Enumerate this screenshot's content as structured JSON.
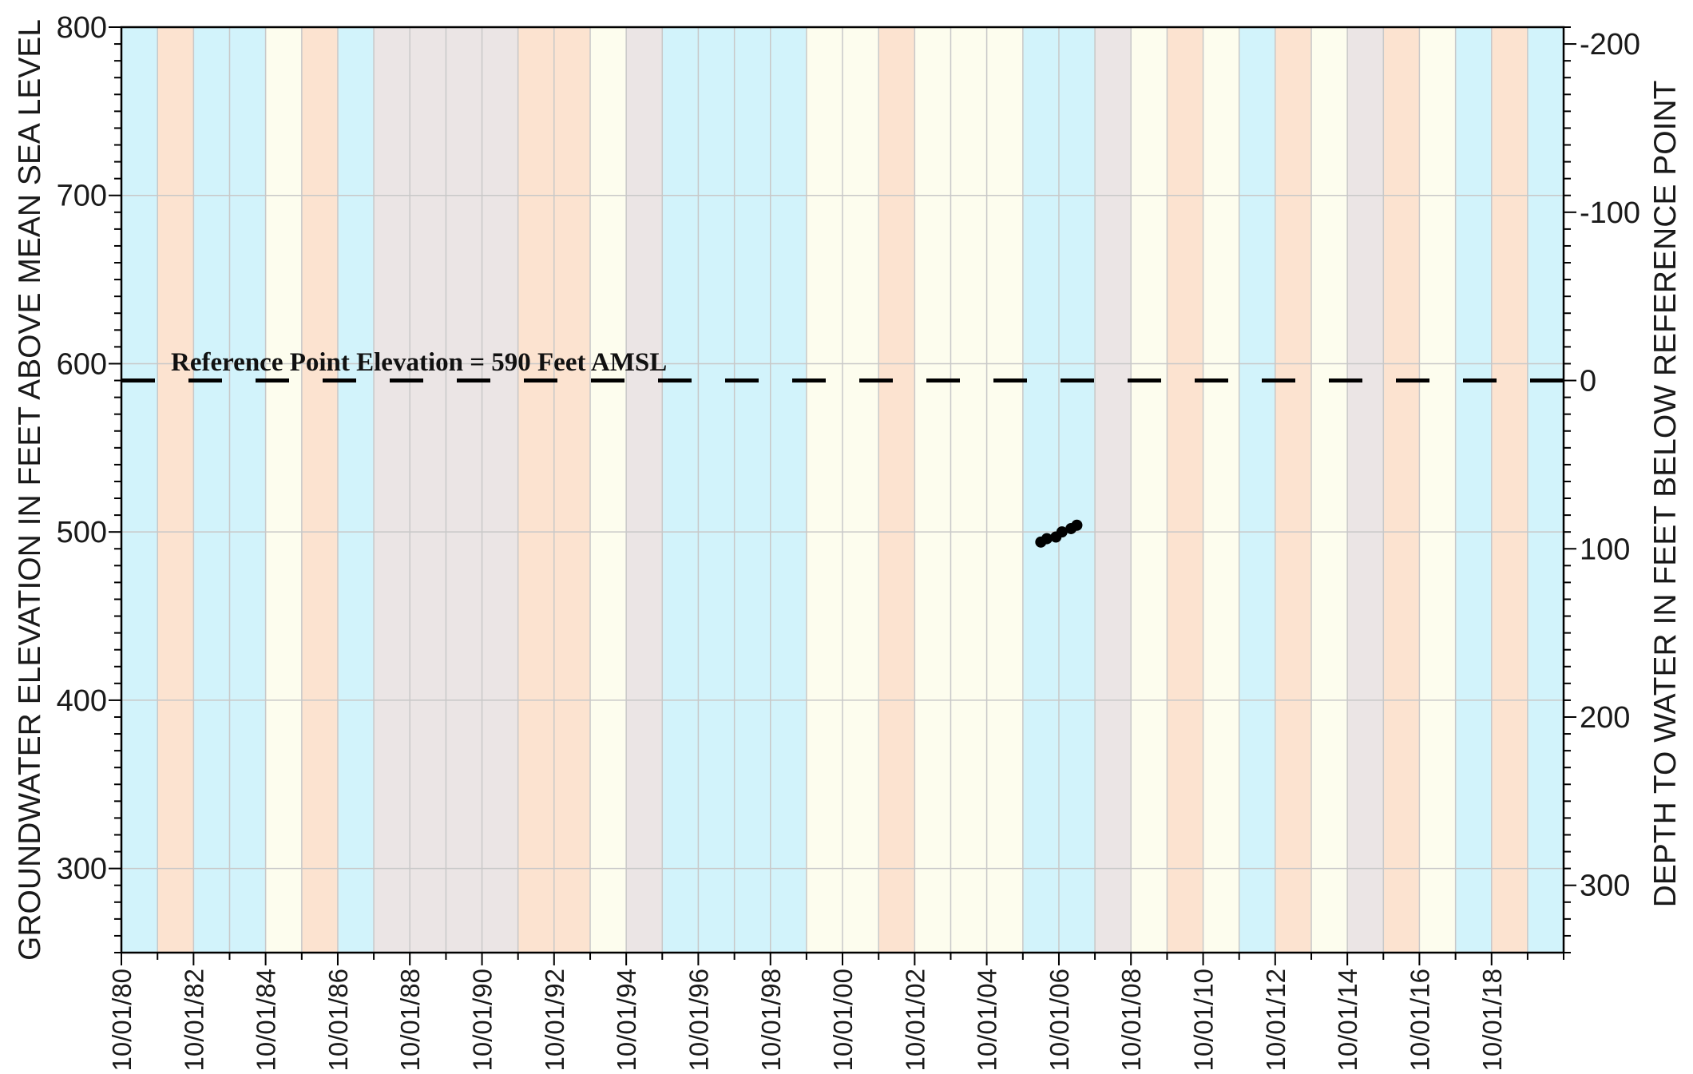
{
  "chart_data": {
    "type": "line",
    "y_left_label": "GROUNDWATER ELEVATION IN FEET ABOVE MEAN SEA LEVEL",
    "y_right_label": "DEPTH TO WATER IN FEET BELOW REFERENCE POINT",
    "ylim": [
      250,
      800
    ],
    "y_ticks": [
      300,
      400,
      500,
      600,
      700,
      800
    ],
    "y_right_ticks": [
      -200,
      -100,
      0,
      100,
      200,
      300
    ],
    "y_right_tick_labels": [
      "-200",
      "-100",
      "0",
      "100",
      "200",
      "300"
    ],
    "xlim": [
      "1979-10-01",
      "2019-10-01"
    ],
    "x_ticks": [
      "10/01/80",
      "10/01/82",
      "10/01/84",
      "10/01/86",
      "10/01/88",
      "10/01/90",
      "10/01/92",
      "10/01/94",
      "10/01/96",
      "10/01/98",
      "10/01/00",
      "10/01/02",
      "10/01/04",
      "10/01/06",
      "10/01/08",
      "10/01/10",
      "10/01/12",
      "10/01/14",
      "10/01/16",
      "10/01/18"
    ],
    "reference_point": {
      "elevation": 590,
      "label": "Reference Point Elevation = 590 Feet AMSL"
    },
    "background_years": {
      "start_year": 1979,
      "classes": [
        "blue",
        "orange",
        "blue",
        "blue",
        "yellow",
        "orange",
        "blue",
        "gray",
        "gray",
        "gray",
        "gray",
        "orange",
        "orange",
        "yellow",
        "gray",
        "blue",
        "blue",
        "blue",
        "blue",
        "yellow",
        "yellow",
        "orange",
        "yellow",
        "yellow",
        "yellow",
        "blue",
        "blue",
        "gray",
        "yellow",
        "orange",
        "yellow",
        "blue",
        "orange",
        "yellow",
        "gray",
        "orange",
        "yellow",
        "blue",
        "orange",
        "blue"
      ],
      "colors": {
        "blue": "#d2f3fb",
        "orange": "#fce3d0",
        "yellow": "#fdfdee",
        "gray": "#ebe5e5"
      }
    },
    "series": [
      {
        "x": [
          "2005-04-01",
          "2005-06-01",
          "2005-09-01",
          "2005-11-01",
          "2006-02-01",
          "2006-04-01"
        ],
        "y": [
          494,
          496,
          497,
          500,
          502,
          504
        ]
      }
    ],
    "grid": true
  },
  "colors": {
    "series": "#000000",
    "grid": "#c8c8c8",
    "axis": "#000000"
  }
}
